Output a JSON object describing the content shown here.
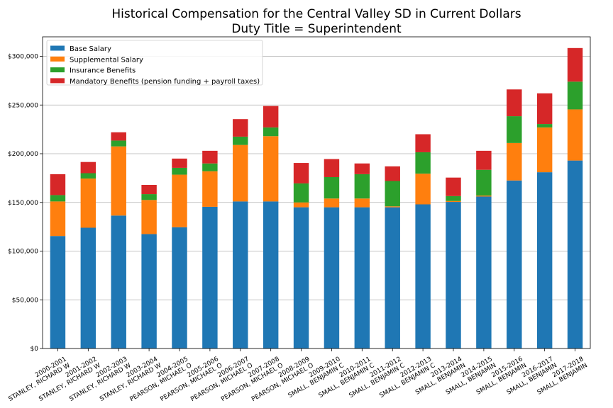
{
  "chart_data": {
    "type": "bar",
    "stacked": true,
    "title": "Historical Compensation for the Central Valley SD in Current Dollars",
    "subtitle": "Duty Title = Superintendent",
    "xlabel": "",
    "ylabel": "",
    "ylim": [
      0,
      320000
    ],
    "yticks": [
      0,
      50000,
      100000,
      150000,
      200000,
      250000,
      300000
    ],
    "ytick_labels": [
      "$0",
      "$50,000",
      "$100,000",
      "$150,000",
      "$200,000",
      "$250,000",
      "$300,000"
    ],
    "grid": "horizontal",
    "legend_position": "top-left",
    "categories": [
      [
        "2000-2001",
        "STANLEY, RICHARD W"
      ],
      [
        "2001-2002",
        "STANLEY, RICHARD W"
      ],
      [
        "2002-2003",
        "STANLEY, RICHARD W"
      ],
      [
        "2003-2004",
        "STANLEY, RICHARD W"
      ],
      [
        "2004-2005",
        "PEARSON, MICHAEL O"
      ],
      [
        "2005-2006",
        "PEARSON, MICHAEL O"
      ],
      [
        "2006-2007",
        "PEARSON, MICHAEL O"
      ],
      [
        "2007-2008",
        "PEARSON, MICHAEL O"
      ],
      [
        "2008-2009",
        "PEARSON, MICHAEL O"
      ],
      [
        "2009-2010",
        "SMALL, BENJAMIN C"
      ],
      [
        "2010-2011",
        "SMALL, BENJAMIN C"
      ],
      [
        "2011-2012",
        "SMALL, BENJAMIN C"
      ],
      [
        "2012-2013",
        "SMALL, BENJAMIN C"
      ],
      [
        "2013-2014",
        "SMALL, BENJAMIN"
      ],
      [
        "2014-2015",
        "SMALL, BENJAMIN"
      ],
      [
        "2015-2016",
        "SMALL, BENJAMIN"
      ],
      [
        "2016-2017",
        "SMALL, BENJAMIN"
      ],
      [
        "2017-2018",
        "SMALL, BENJAMIN"
      ]
    ],
    "series": [
      {
        "name": "Base Salary",
        "color": "#1f77b4",
        "values": [
          115500,
          124000,
          136500,
          117500,
          124500,
          145500,
          151000,
          151000,
          145000,
          145000,
          145000,
          145000,
          148000,
          150500,
          156000,
          172500,
          181000,
          193000
        ]
      },
      {
        "name": "Supplemental Salary",
        "color": "#ff7f0e",
        "values": [
          35500,
          50500,
          71000,
          35000,
          54000,
          36500,
          58000,
          67000,
          5000,
          9000,
          9000,
          1000,
          31500,
          1000,
          1000,
          38500,
          46000,
          52500
        ]
      },
      {
        "name": "Insurance Benefits",
        "color": "#2ca02c",
        "values": [
          6500,
          5500,
          6000,
          6000,
          7000,
          8000,
          8500,
          9000,
          19500,
          22000,
          25000,
          26000,
          22000,
          5000,
          26500,
          27500,
          3500,
          28500
        ]
      },
      {
        "name": "Mandatory Benefits (pension funding + payroll taxes)",
        "color": "#d62728",
        "values": [
          21500,
          11500,
          8500,
          9500,
          9500,
          13000,
          18000,
          22000,
          21000,
          18500,
          11000,
          15000,
          18500,
          19000,
          19500,
          27500,
          31500,
          34500
        ]
      }
    ]
  }
}
